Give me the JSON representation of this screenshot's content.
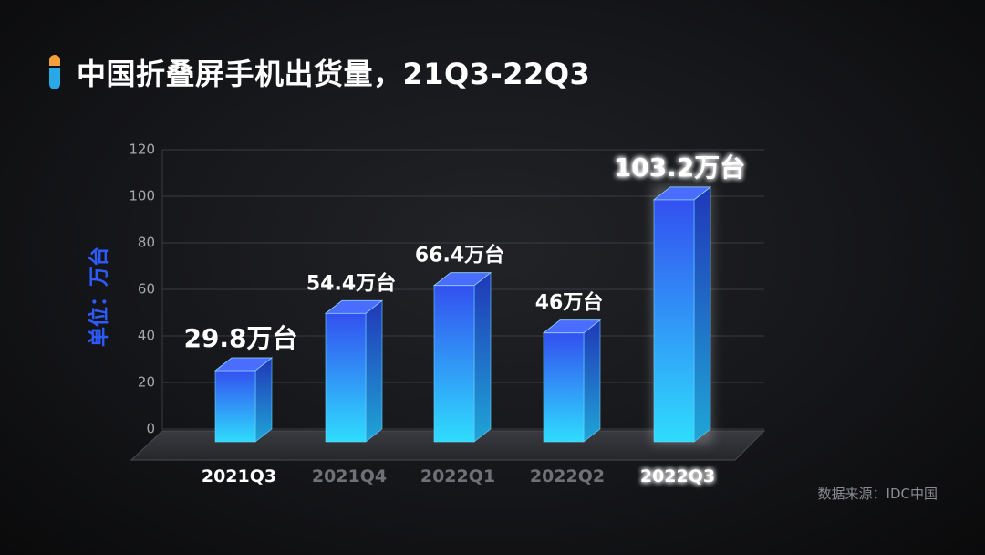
{
  "slide": {
    "title": "中国折叠屏手机出货量，21Q3-22Q3",
    "source": "数据来源：IDC中国",
    "ylabel": "单位：万台"
  },
  "colors": {
    "bar_top": "#3350f0",
    "bar_bottom": "#2fdcfd",
    "title_marker_top": "#f5a03a",
    "title_marker_bottom": "#29a8e6",
    "ylabel": "#2e5bff"
  },
  "chart_data": {
    "type": "bar",
    "categories": [
      "2021Q3",
      "2021Q4",
      "2022Q1",
      "2022Q2",
      "2022Q3"
    ],
    "values": [
      29.8,
      54.4,
      66.4,
      46,
      103.2
    ],
    "data_labels": [
      "29.8万台",
      "54.4万台",
      "66.4万台",
      "46万台",
      "103.2万台"
    ],
    "highlighted_categories": [
      "2021Q3",
      "2022Q3"
    ],
    "ylabel": "单位：万台",
    "ylim": [
      0,
      120
    ],
    "yticks": [
      0,
      20,
      40,
      60,
      80,
      100,
      120
    ],
    "grid": true,
    "style": "3d-bar"
  }
}
